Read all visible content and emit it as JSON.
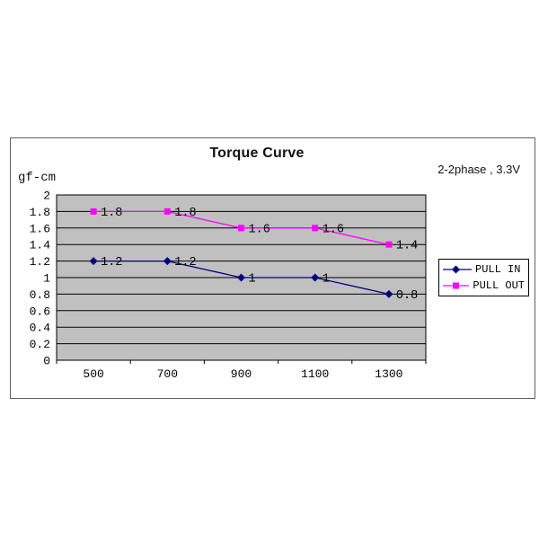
{
  "chart_data": {
    "type": "line",
    "title": "Torque Curve",
    "annotation": "2-2phase , 3.3V",
    "ylabel": "gf-cm",
    "xlabel": "",
    "categories": [
      500,
      700,
      900,
      1100,
      1300
    ],
    "series": [
      {
        "name": "PULL IN",
        "values": [
          1.2,
          1.2,
          1,
          1,
          0.8
        ],
        "color": "#000080",
        "marker": "diamond"
      },
      {
        "name": "PULL OUT",
        "values": [
          1.8,
          1.8,
          1.6,
          1.6,
          1.4
        ],
        "color": "#FF00FF",
        "marker": "square"
      }
    ],
    "ylim": [
      0,
      2
    ],
    "yticks": [
      0,
      0.2,
      0.4,
      0.6,
      0.8,
      1,
      1.2,
      1.4,
      1.6,
      1.8,
      2
    ],
    "grid": "horizontal",
    "data_labels": true,
    "legend_position": "right",
    "colors": {
      "plot_background": "#C0C0C0",
      "gridline": "#000000",
      "plot_border": "#000000",
      "frame_border": "#5f5f5f",
      "text": "#000000"
    }
  }
}
